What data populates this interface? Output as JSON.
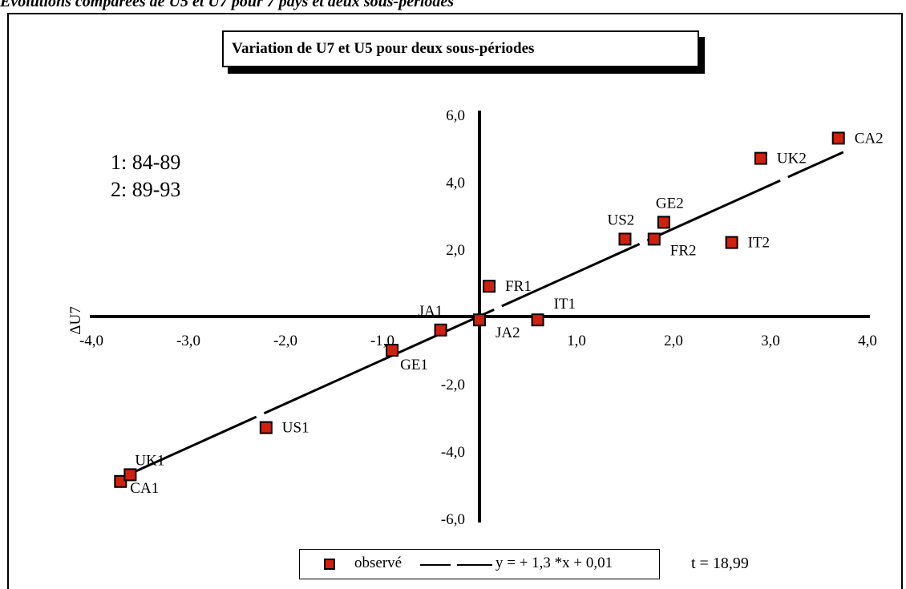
{
  "page_header": "Evolutions comparées de U5 et U7 pour 7 pays et deux sous-périodes",
  "chart_data": {
    "type": "scatter",
    "title": "Variation de U7 et U5 pour deux sous-périodes",
    "xlabel": "",
    "ylabel": "ΔU7",
    "xlim": [
      -4.0,
      4.0
    ],
    "ylim": [
      -6.0,
      6.0
    ],
    "x_ticks": [
      "-4,0",
      "-3,0",
      "-2,0",
      "-1,0",
      "1,0",
      "2,0",
      "3,0",
      "4,0"
    ],
    "y_ticks": [
      "6,0",
      "4,0",
      "2,0",
      "-2,0",
      "-4,0",
      "-6,0"
    ],
    "grid": false,
    "marker_color": "#d0200e",
    "series": [
      {
        "name": "observé",
        "points": [
          {
            "label": "CA1",
            "x": -3.7,
            "y": -4.9
          },
          {
            "label": "UK1",
            "x": -3.6,
            "y": -4.7
          },
          {
            "label": "US1",
            "x": -2.2,
            "y": -3.3
          },
          {
            "label": "GE1",
            "x": -0.9,
            "y": -1.0
          },
          {
            "label": "JA1",
            "x": -0.4,
            "y": -0.4
          },
          {
            "label": "JA2",
            "x": 0.0,
            "y": -0.1
          },
          {
            "label": "FR1",
            "x": 0.1,
            "y": 0.9
          },
          {
            "label": "IT1",
            "x": 0.6,
            "y": -0.1
          },
          {
            "label": "US2",
            "x": 1.5,
            "y": 2.3
          },
          {
            "label": "FR2",
            "x": 1.8,
            "y": 2.3
          },
          {
            "label": "GE2",
            "x": 1.9,
            "y": 2.8
          },
          {
            "label": "IT2",
            "x": 2.6,
            "y": 2.2
          },
          {
            "label": "UK2",
            "x": 2.9,
            "y": 4.7
          },
          {
            "label": "CA2",
            "x": 3.7,
            "y": 5.3
          }
        ]
      }
    ],
    "regression": {
      "label": "y = +  1,3 *x + 0,01",
      "slope": 1.3,
      "intercept": 0.01,
      "x_range": [
        -3.75,
        3.75
      ]
    },
    "annotations": {
      "period_1": "1: 84-89",
      "period_2": "2: 89-93",
      "t_stat": "t = 18,99"
    }
  }
}
